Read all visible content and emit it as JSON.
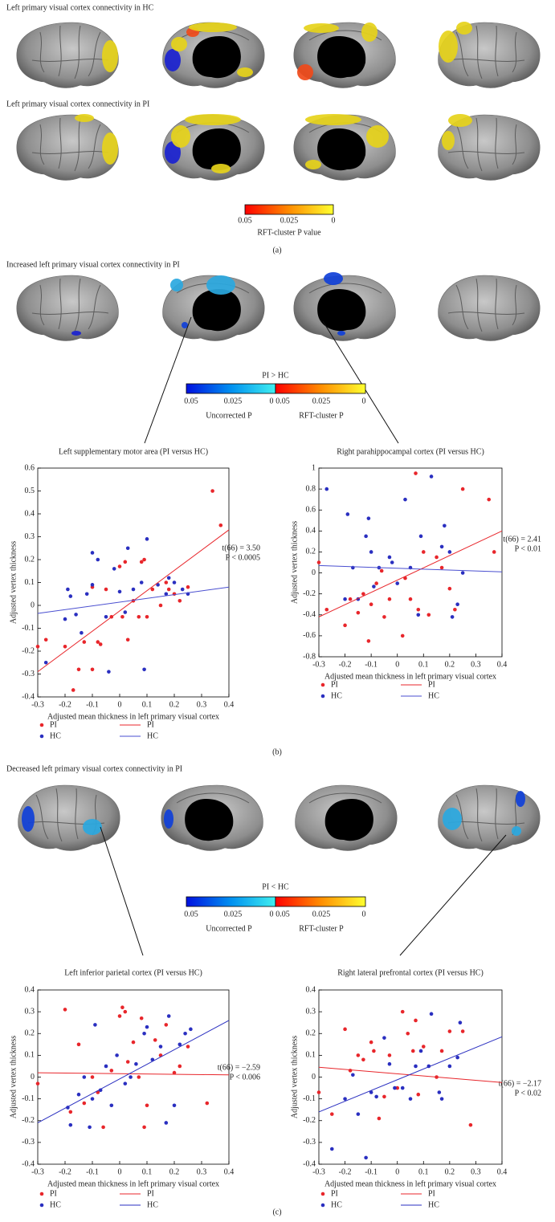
{
  "panel_a": {
    "heading_hc": "Left primary visual cortex connectivity in HC",
    "heading_pi": "Left primary visual cortex connectivity in PI",
    "colorbar": {
      "ticks": [
        "0.05",
        "0.025",
        "0"
      ],
      "label": "RFT-cluster P value"
    },
    "label": "(a)"
  },
  "panel_b": {
    "heading": "Increased left primary visual cortex connectivity in PI",
    "colorbar": {
      "title": "PI > HC",
      "left_ticks": [
        "0.05",
        "0.025",
        "0"
      ],
      "right_ticks": [
        "0.05",
        "0.025",
        "0"
      ],
      "left_label": "Uncorrected P",
      "right_label": "RFT-cluster P"
    },
    "label": "(b)"
  },
  "panel_c": {
    "heading": "Decreased left primary visual cortex connectivity in PI",
    "colorbar": {
      "title": "PI < HC",
      "left_ticks": [
        "0.05",
        "0.025",
        "0"
      ],
      "right_ticks": [
        "0.05",
        "0.025",
        "0"
      ],
      "left_label": "Uncorrected P",
      "right_label": "RFT-cluster P"
    },
    "label": "(c)"
  },
  "chart_data": [
    {
      "type": "scatter",
      "title": "Left supplementary motor area (PI versus HC)",
      "xlabel": "Adjusted mean thickness in left primary visual cortex",
      "ylabel": "Adjusted vertex thickness",
      "annotations": [
        "t(66) = 3.50",
        "P < 0.0005"
      ],
      "xlim": [
        -0.3,
        0.4
      ],
      "xticks": [
        -0.3,
        -0.2,
        -0.1,
        0,
        0.1,
        0.2,
        0.3,
        0.4
      ],
      "ylim": [
        -0.4,
        0.6
      ],
      "yticks": [
        -0.4,
        -0.3,
        -0.2,
        -0.1,
        0,
        0.1,
        0.2,
        0.3,
        0.4,
        0.5,
        0.6
      ],
      "series": [
        {
          "name": "PI",
          "color": "#e8262b",
          "mode": "points",
          "x": [
            -0.3,
            -0.27,
            -0.2,
            -0.17,
            -0.15,
            -0.13,
            -0.1,
            -0.1,
            -0.08,
            -0.07,
            -0.05,
            -0.03,
            0,
            0.01,
            0.02,
            0.03,
            0.05,
            0.07,
            0.08,
            0.09,
            0.1,
            0.12,
            0.15,
            0.17,
            0.18,
            0.2,
            0.22,
            0.25,
            0.34,
            0.37
          ],
          "values": [
            -0.18,
            -0.15,
            -0.18,
            -0.37,
            -0.28,
            -0.16,
            -0.28,
            0.08,
            -0.16,
            -0.17,
            0.07,
            -0.05,
            0.17,
            -0.05,
            0.19,
            -0.15,
            0.02,
            -0.05,
            0.19,
            0.2,
            -0.05,
            0.07,
            0,
            0.1,
            0.07,
            0.05,
            0.02,
            0.08,
            0.5,
            0.35
          ]
        },
        {
          "name": "HC",
          "color": "#2a2fc0",
          "mode": "points",
          "x": [
            -0.27,
            -0.2,
            -0.19,
            -0.18,
            -0.16,
            -0.14,
            -0.12,
            -0.1,
            -0.1,
            -0.08,
            -0.05,
            -0.04,
            -0.02,
            0,
            0.02,
            0.03,
            0.05,
            0.08,
            0.09,
            0.1,
            0.14,
            0.17,
            0.18,
            0.2,
            0.23,
            0.25
          ],
          "values": [
            -0.25,
            -0.06,
            0.07,
            0.04,
            -0.04,
            -0.12,
            0.05,
            0.23,
            0.09,
            0.2,
            -0.05,
            -0.29,
            0.16,
            0.06,
            -0.03,
            0.25,
            0.07,
            0.1,
            -0.28,
            0.29,
            0.09,
            0.05,
            0.12,
            0.1,
            0.07,
            0.05
          ]
        },
        {
          "name": "PI",
          "color": "#e8262b",
          "mode": "line",
          "x": [
            -0.3,
            0.4
          ],
          "values": [
            -0.29,
            0.33
          ]
        },
        {
          "name": "HC",
          "color": "#4a4fd0",
          "mode": "line",
          "x": [
            -0.3,
            0.4
          ],
          "values": [
            -0.035,
            0.08
          ]
        }
      ]
    },
    {
      "type": "scatter",
      "title": "Right parahippocampal cortex (PI versus HC)",
      "xlabel": "Adjusted mean thickness in left primary visual cortex",
      "ylabel": "Adjusted vertex thickness",
      "annotations": [
        "t(66) = 2.41",
        "P < 0.01"
      ],
      "xlim": [
        -0.3,
        0.4
      ],
      "xticks": [
        -0.3,
        -0.2,
        -0.1,
        0,
        0.1,
        0.2,
        0.3,
        0.4
      ],
      "ylim": [
        -0.8,
        1
      ],
      "yticks": [
        -0.8,
        -0.6,
        -0.4,
        -0.2,
        0,
        0.2,
        0.4,
        0.6,
        0.8,
        1
      ],
      "series": [
        {
          "name": "PI",
          "color": "#e8262b",
          "mode": "points",
          "x": [
            -0.3,
            -0.27,
            -0.2,
            -0.18,
            -0.15,
            -0.13,
            -0.11,
            -0.1,
            -0.08,
            -0.06,
            -0.05,
            -0.03,
            0.02,
            0.03,
            0.05,
            0.07,
            0.08,
            0.1,
            0.12,
            0.15,
            0.17,
            0.2,
            0.22,
            0.25,
            0.35,
            0.37
          ],
          "values": [
            0.1,
            -0.35,
            -0.5,
            -0.25,
            -0.38,
            -0.2,
            -0.65,
            -0.3,
            -0.1,
            0.02,
            -0.42,
            -0.25,
            -0.6,
            -0.05,
            -0.25,
            0.95,
            -0.35,
            0.2,
            -0.4,
            0.15,
            0.05,
            -0.15,
            -0.35,
            0.8,
            0.7,
            0.2
          ]
        },
        {
          "name": "HC",
          "color": "#2a2fc0",
          "mode": "points",
          "x": [
            -0.27,
            -0.2,
            -0.19,
            -0.17,
            -0.15,
            -0.12,
            -0.11,
            -0.1,
            -0.09,
            -0.07,
            -0.03,
            -0.02,
            0,
            0.03,
            0.05,
            0.08,
            0.09,
            0.13,
            0.17,
            0.18,
            0.2,
            0.21,
            0.23,
            0.25
          ],
          "values": [
            0.8,
            -0.25,
            0.56,
            0.05,
            -0.25,
            0.35,
            0.52,
            0.2,
            -0.13,
            0.05,
            0.15,
            0.1,
            -0.1,
            0.7,
            0.05,
            -0.4,
            0.35,
            0.92,
            0.25,
            0.45,
            0.2,
            -0.42,
            -0.3,
            0
          ]
        },
        {
          "name": "PI",
          "color": "#e8262b",
          "mode": "line",
          "x": [
            -0.3,
            0.4
          ],
          "values": [
            -0.42,
            0.4
          ]
        },
        {
          "name": "HC",
          "color": "#4a4fd0",
          "mode": "line",
          "x": [
            -0.3,
            0.4
          ],
          "values": [
            0.07,
            0.01
          ]
        }
      ]
    },
    {
      "type": "scatter",
      "title": "Left inferior parietal cortex (PI versus HC)",
      "xlabel": "Adjusted mean thickness in left primary visual cortex",
      "ylabel": "Adjusted vertex thickness",
      "annotations": [
        "t(66) = −2.59",
        "P < 0.006"
      ],
      "xlim": [
        -0.3,
        0.4
      ],
      "xticks": [
        -0.3,
        -0.2,
        -0.1,
        0,
        0.1,
        0.2,
        0.3,
        0.4
      ],
      "ylim": [
        -0.4,
        0.4
      ],
      "yticks": [
        -0.4,
        -0.3,
        -0.2,
        -0.1,
        0,
        0.1,
        0.2,
        0.3,
        0.4
      ],
      "series": [
        {
          "name": "PI",
          "color": "#e8262b",
          "mode": "points",
          "x": [
            -0.3,
            -0.2,
            -0.18,
            -0.15,
            -0.13,
            -0.1,
            -0.08,
            -0.06,
            -0.03,
            0,
            0.01,
            0.02,
            0.03,
            0.05,
            0.07,
            0.08,
            0.09,
            0.1,
            0.13,
            0.15,
            0.17,
            0.2,
            0.22,
            0.25,
            0.32
          ],
          "values": [
            -0.03,
            0.31,
            -0.16,
            0.15,
            -0.12,
            0,
            -0.07,
            -0.23,
            0.03,
            0.28,
            0.32,
            0.3,
            0.07,
            0.16,
            0,
            0.27,
            -0.23,
            -0.13,
            0.17,
            0.1,
            0.24,
            0.02,
            0.05,
            0.14,
            -0.12
          ]
        },
        {
          "name": "HC",
          "color": "#2a2fc0",
          "mode": "points",
          "x": [
            -0.19,
            -0.18,
            -0.15,
            -0.13,
            -0.11,
            -0.1,
            -0.09,
            -0.07,
            -0.05,
            -0.03,
            -0.01,
            0.02,
            0.04,
            0.06,
            0.09,
            0.1,
            0.12,
            0.15,
            0.17,
            0.18,
            0.2,
            0.22,
            0.24,
            0.26
          ],
          "values": [
            -0.14,
            -0.22,
            -0.08,
            0,
            -0.23,
            -0.1,
            0.24,
            -0.06,
            0.05,
            -0.13,
            0.1,
            -0.03,
            0,
            0.06,
            0.2,
            0.23,
            0.08,
            0.14,
            -0.21,
            0.28,
            -0.13,
            0.15,
            0.2,
            0.22
          ]
        },
        {
          "name": "PI",
          "color": "#e8262b",
          "mode": "line",
          "x": [
            -0.3,
            0.4
          ],
          "values": [
            0.02,
            0.01
          ]
        },
        {
          "name": "HC",
          "color": "#2a2fc0",
          "mode": "line",
          "x": [
            -0.3,
            0.4
          ],
          "values": [
            -0.21,
            0.26
          ]
        }
      ]
    },
    {
      "type": "scatter",
      "title": "Right lateral prefrontal cortex (PI versus HC)",
      "xlabel": "Adjusted mean thickness in left primary visual cortex",
      "ylabel": "Adjusted vertex thickness",
      "annotations": [
        "t(66) = −2.17",
        "P < 0.02"
      ],
      "xlim": [
        -0.3,
        0.4
      ],
      "xticks": [
        -0.3,
        -0.2,
        -0.1,
        0,
        0.1,
        0.2,
        0.3,
        0.4
      ],
      "ylim": [
        -0.4,
        0.4
      ],
      "yticks": [
        -0.4,
        -0.3,
        -0.2,
        -0.1,
        0,
        0.1,
        0.2,
        0.3,
        0.4
      ],
      "series": [
        {
          "name": "PI",
          "color": "#e8262b",
          "mode": "points",
          "x": [
            -0.3,
            -0.25,
            -0.2,
            -0.18,
            -0.15,
            -0.13,
            -0.1,
            -0.09,
            -0.07,
            -0.05,
            -0.03,
            0,
            0.02,
            0.04,
            0.06,
            0.07,
            0.08,
            0.1,
            0.15,
            0.17,
            0.2,
            0.25,
            0.28
          ],
          "values": [
            -0.07,
            -0.17,
            0.22,
            0.03,
            0.1,
            0.08,
            0.16,
            0.12,
            -0.19,
            -0.09,
            0.1,
            -0.05,
            0.3,
            0.2,
            0.12,
            0.26,
            -0.08,
            0.14,
            0,
            0.12,
            0.21,
            0.21,
            -0.22
          ]
        },
        {
          "name": "HC",
          "color": "#2a2fc0",
          "mode": "points",
          "x": [
            -0.25,
            -0.2,
            -0.17,
            -0.15,
            -0.12,
            -0.1,
            -0.08,
            -0.05,
            -0.03,
            -0.01,
            0.02,
            0.05,
            0.07,
            0.09,
            0.12,
            0.13,
            0.16,
            0.17,
            0.2,
            0.23,
            0.24
          ],
          "values": [
            -0.33,
            -0.1,
            0.01,
            -0.17,
            -0.37,
            -0.07,
            -0.09,
            0.18,
            0.06,
            -0.05,
            -0.05,
            -0.1,
            0.05,
            0.12,
            0.05,
            0.29,
            -0.07,
            -0.1,
            0.05,
            0.09,
            0.25
          ]
        },
        {
          "name": "PI",
          "color": "#e8262b",
          "mode": "line",
          "x": [
            -0.3,
            0.4
          ],
          "values": [
            0.045,
            -0.025
          ]
        },
        {
          "name": "HC",
          "color": "#2a2fc0",
          "mode": "line",
          "x": [
            -0.3,
            0.4
          ],
          "values": [
            -0.16,
            0.185
          ]
        }
      ]
    }
  ]
}
